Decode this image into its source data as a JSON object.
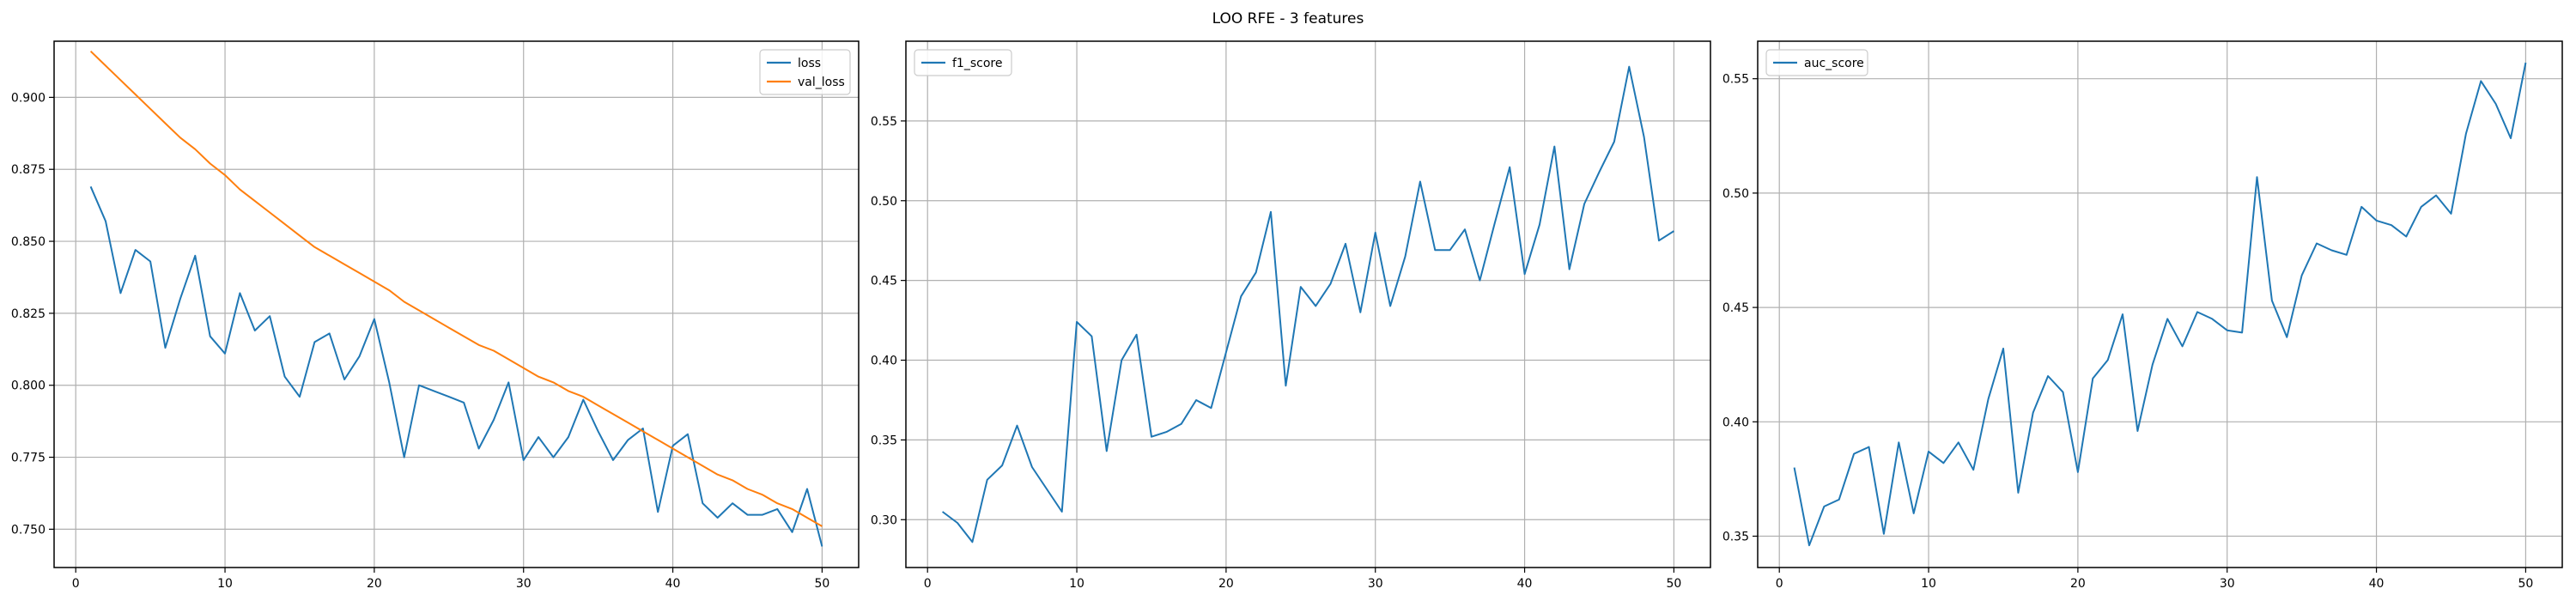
{
  "figure_title": "LOO RFE - 3 features",
  "chart_data": [
    {
      "type": "line",
      "title": "",
      "xlabel": "",
      "ylabel": "",
      "xlim": [
        -1.45,
        52.45
      ],
      "ylim": [
        0.7367,
        0.9195
      ],
      "xticks": [
        0,
        10,
        20,
        30,
        40,
        50
      ],
      "yticks": [
        0.75,
        0.775,
        0.8,
        0.825,
        0.85,
        0.875,
        0.9
      ],
      "ytick_labels": [
        "0.750",
        "0.775",
        "0.800",
        "0.825",
        "0.850",
        "0.875",
        "0.900"
      ],
      "grid": true,
      "legend_position": "top-right",
      "x": [
        1,
        2,
        3,
        4,
        5,
        6,
        7,
        8,
        9,
        10,
        11,
        12,
        13,
        14,
        15,
        16,
        17,
        18,
        19,
        20,
        21,
        22,
        23,
        24,
        25,
        26,
        27,
        28,
        29,
        30,
        31,
        32,
        33,
        34,
        35,
        36,
        37,
        38,
        39,
        40,
        41,
        42,
        43,
        44,
        45,
        46,
        47,
        48,
        49,
        50
      ],
      "series": [
        {
          "name": "loss",
          "color": "#1f77b4",
          "values": [
            0.869,
            0.857,
            0.832,
            0.847,
            0.843,
            0.813,
            0.83,
            0.845,
            0.817,
            0.811,
            0.832,
            0.819,
            0.824,
            0.803,
            0.796,
            0.815,
            0.818,
            0.802,
            0.81,
            0.823,
            0.801,
            0.775,
            0.8,
            0.798,
            0.796,
            0.794,
            0.778,
            0.788,
            0.801,
            0.774,
            0.782,
            0.775,
            0.782,
            0.795,
            0.784,
            0.774,
            0.781,
            0.785,
            0.756,
            0.779,
            0.783,
            0.759,
            0.754,
            0.759,
            0.755,
            0.755,
            0.757,
            0.749,
            0.764,
            0.744
          ]
        },
        {
          "name": "val_loss",
          "color": "#ff7f0e",
          "values": [
            0.916,
            0.911,
            0.906,
            0.901,
            0.896,
            0.891,
            0.886,
            0.882,
            0.877,
            0.873,
            0.868,
            0.864,
            0.86,
            0.856,
            0.852,
            0.848,
            0.845,
            0.842,
            0.839,
            0.836,
            0.833,
            0.829,
            0.826,
            0.823,
            0.82,
            0.817,
            0.814,
            0.812,
            0.809,
            0.806,
            0.803,
            0.801,
            0.798,
            0.796,
            0.793,
            0.79,
            0.787,
            0.784,
            0.781,
            0.778,
            0.775,
            0.772,
            0.769,
            0.767,
            0.764,
            0.762,
            0.759,
            0.757,
            0.754,
            0.751
          ]
        }
      ]
    },
    {
      "type": "line",
      "title": "",
      "xlabel": "",
      "ylabel": "",
      "xlim": [
        -1.45,
        52.45
      ],
      "ylim": [
        0.27,
        0.6
      ],
      "xticks": [
        0,
        10,
        20,
        30,
        40,
        50
      ],
      "yticks": [
        0.3,
        0.35,
        0.4,
        0.45,
        0.5,
        0.55
      ],
      "ytick_labels": [
        "0.30",
        "0.35",
        "0.40",
        "0.45",
        "0.50",
        "0.55"
      ],
      "grid": true,
      "legend_position": "top-left",
      "x": [
        1,
        2,
        3,
        4,
        5,
        6,
        7,
        8,
        9,
        10,
        11,
        12,
        13,
        14,
        15,
        16,
        17,
        18,
        19,
        20,
        21,
        22,
        23,
        24,
        25,
        26,
        27,
        28,
        29,
        30,
        31,
        32,
        33,
        34,
        35,
        36,
        37,
        38,
        39,
        40,
        41,
        42,
        43,
        44,
        45,
        46,
        47,
        48,
        49,
        50
      ],
      "series": [
        {
          "name": "f1_score",
          "color": "#1f77b4",
          "values": [
            0.305,
            0.298,
            0.286,
            0.325,
            0.334,
            0.359,
            0.333,
            0.319,
            0.305,
            0.424,
            0.415,
            0.343,
            0.4,
            0.416,
            0.352,
            0.355,
            0.36,
            0.375,
            0.37,
            0.405,
            0.44,
            0.455,
            0.493,
            0.384,
            0.446,
            0.434,
            0.448,
            0.473,
            0.43,
            0.48,
            0.434,
            0.465,
            0.512,
            0.469,
            0.469,
            0.482,
            0.45,
            0.486,
            0.521,
            0.454,
            0.485,
            0.534,
            0.457,
            0.498,
            0.518,
            0.537,
            0.584,
            0.54,
            0.475,
            0.481
          ]
        }
      ]
    },
    {
      "type": "line",
      "title": "",
      "xlabel": "",
      "ylabel": "",
      "xlim": [
        -1.45,
        52.45
      ],
      "ylim": [
        0.3363,
        0.5664
      ],
      "xticks": [
        0,
        10,
        20,
        30,
        40,
        50
      ],
      "yticks": [
        0.35,
        0.4,
        0.45,
        0.5,
        0.55
      ],
      "ytick_labels": [
        "0.35",
        "0.40",
        "0.45",
        "0.50",
        "0.55"
      ],
      "grid": true,
      "legend_position": "top-left",
      "x": [
        1,
        2,
        3,
        4,
        5,
        6,
        7,
        8,
        9,
        10,
        11,
        12,
        13,
        14,
        15,
        16,
        17,
        18,
        19,
        20,
        21,
        22,
        23,
        24,
        25,
        26,
        27,
        28,
        29,
        30,
        31,
        32,
        33,
        34,
        35,
        36,
        37,
        38,
        39,
        40,
        41,
        42,
        43,
        44,
        45,
        46,
        47,
        48,
        49,
        50
      ],
      "series": [
        {
          "name": "auc_score",
          "color": "#1f77b4",
          "values": [
            0.38,
            0.346,
            0.363,
            0.366,
            0.386,
            0.389,
            0.351,
            0.391,
            0.36,
            0.387,
            0.382,
            0.391,
            0.379,
            0.41,
            0.432,
            0.369,
            0.404,
            0.42,
            0.413,
            0.378,
            0.419,
            0.427,
            0.447,
            0.396,
            0.425,
            0.445,
            0.433,
            0.448,
            0.445,
            0.44,
            0.439,
            0.507,
            0.453,
            0.437,
            0.464,
            0.478,
            0.475,
            0.473,
            0.494,
            0.488,
            0.486,
            0.481,
            0.494,
            0.499,
            0.491,
            0.526,
            0.549,
            0.539,
            0.524,
            0.557
          ]
        }
      ]
    }
  ]
}
